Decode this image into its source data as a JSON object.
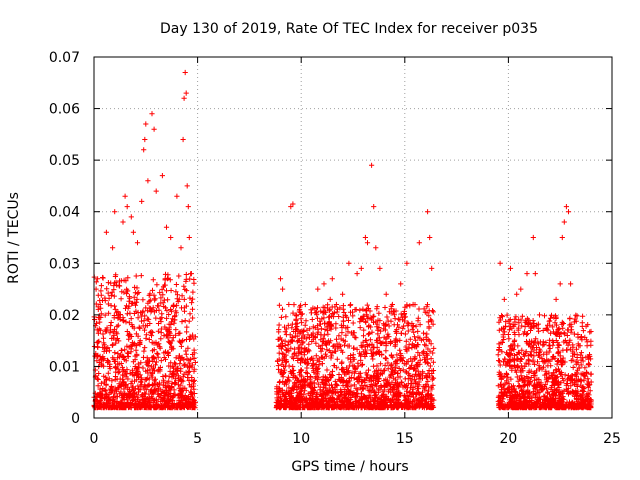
{
  "chart_data": {
    "type": "scatter",
    "title": "Day 130 of 2019, Rate Of TEC Index for receiver p035",
    "xlabel": "GPS time / hours",
    "ylabel": "ROTI / TECUs",
    "xlim": [
      0,
      25
    ],
    "ylim": [
      0,
      0.07
    ],
    "xticks": [
      0,
      5,
      10,
      15,
      20,
      25
    ],
    "yticks": [
      0,
      0.01,
      0.02,
      0.03,
      0.04,
      0.05,
      0.06,
      0.07
    ],
    "x_tick_labels": [
      "0",
      "5",
      "10",
      "15",
      "20",
      "25"
    ],
    "y_tick_labels": [
      "0",
      "0.01",
      "0.02",
      "0.03",
      "0.04",
      "0.05",
      "0.06",
      "0.07"
    ],
    "grid": true,
    "marker": "+",
    "marker_color": "#ff0000",
    "series": [
      {
        "name": "ROTI",
        "segments": [
          {
            "x_start": 0.0,
            "x_end": 4.9,
            "y_floor": 0.002,
            "y_core_max": 0.028,
            "y_peak": 0.067
          },
          {
            "x_start": 8.8,
            "x_end": 16.4,
            "y_floor": 0.002,
            "y_core_max": 0.022,
            "y_peak": 0.049
          },
          {
            "x_start": 19.5,
            "x_end": 24.0,
            "y_floor": 0.002,
            "y_core_max": 0.02,
            "y_peak": 0.041
          }
        ],
        "points": [
          [
            0.1,
            0.025
          ],
          [
            0.3,
            0.022
          ],
          [
            0.6,
            0.036
          ],
          [
            0.9,
            0.033
          ],
          [
            1.0,
            0.04
          ],
          [
            1.4,
            0.038
          ],
          [
            1.5,
            0.043
          ],
          [
            1.6,
            0.041
          ],
          [
            1.8,
            0.039
          ],
          [
            1.9,
            0.036
          ],
          [
            2.1,
            0.034
          ],
          [
            2.3,
            0.042
          ],
          [
            2.4,
            0.052
          ],
          [
            2.45,
            0.054
          ],
          [
            2.5,
            0.057
          ],
          [
            2.6,
            0.046
          ],
          [
            2.8,
            0.059
          ],
          [
            2.9,
            0.056
          ],
          [
            3.0,
            0.044
          ],
          [
            3.3,
            0.047
          ],
          [
            3.5,
            0.037
          ],
          [
            3.7,
            0.035
          ],
          [
            4.0,
            0.043
          ],
          [
            4.2,
            0.033
          ],
          [
            4.3,
            0.054
          ],
          [
            4.35,
            0.062
          ],
          [
            4.4,
            0.067
          ],
          [
            4.45,
            0.063
          ],
          [
            4.5,
            0.045
          ],
          [
            4.55,
            0.041
          ],
          [
            4.6,
            0.035
          ],
          [
            4.7,
            0.028
          ],
          [
            9.0,
            0.027
          ],
          [
            9.1,
            0.025
          ],
          [
            9.4,
            0.022
          ],
          [
            9.5,
            0.041
          ],
          [
            9.6,
            0.0415
          ],
          [
            10.2,
            0.022
          ],
          [
            10.8,
            0.025
          ],
          [
            11.1,
            0.026
          ],
          [
            11.4,
            0.023
          ],
          [
            11.5,
            0.027
          ],
          [
            11.7,
            0.022
          ],
          [
            12.0,
            0.024
          ],
          [
            12.3,
            0.03
          ],
          [
            12.7,
            0.028
          ],
          [
            12.9,
            0.029
          ],
          [
            13.1,
            0.035
          ],
          [
            13.2,
            0.034
          ],
          [
            13.4,
            0.049
          ],
          [
            13.5,
            0.041
          ],
          [
            13.6,
            0.033
          ],
          [
            13.8,
            0.029
          ],
          [
            14.1,
            0.024
          ],
          [
            14.4,
            0.022
          ],
          [
            14.8,
            0.026
          ],
          [
            15.1,
            0.03
          ],
          [
            15.4,
            0.022
          ],
          [
            15.7,
            0.034
          ],
          [
            16.1,
            0.04
          ],
          [
            16.2,
            0.035
          ],
          [
            16.3,
            0.029
          ],
          [
            19.6,
            0.03
          ],
          [
            19.8,
            0.023
          ],
          [
            20.1,
            0.029
          ],
          [
            20.4,
            0.024
          ],
          [
            20.6,
            0.025
          ],
          [
            20.9,
            0.028
          ],
          [
            21.2,
            0.035
          ],
          [
            21.3,
            0.028
          ],
          [
            21.5,
            0.02
          ],
          [
            21.9,
            0.018
          ],
          [
            22.3,
            0.023
          ],
          [
            22.5,
            0.026
          ],
          [
            22.6,
            0.035
          ],
          [
            22.7,
            0.038
          ],
          [
            22.8,
            0.041
          ],
          [
            22.9,
            0.04
          ],
          [
            23.0,
            0.026
          ],
          [
            23.4,
            0.014
          ],
          [
            23.8,
            0.014
          ]
        ]
      }
    ]
  }
}
